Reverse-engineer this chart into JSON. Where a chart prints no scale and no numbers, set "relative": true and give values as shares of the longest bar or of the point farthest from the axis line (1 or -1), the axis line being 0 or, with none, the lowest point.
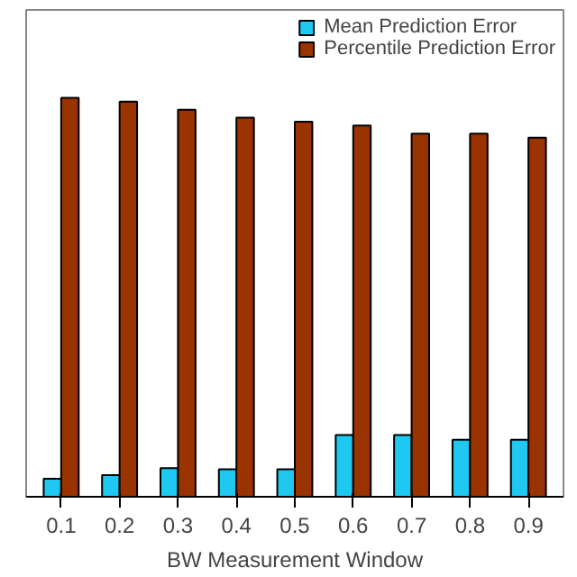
{
  "chart_data": {
    "type": "bar",
    "relative": true,
    "xlabel": "BW Measurement Window",
    "categories": [
      "0.1",
      "0.2",
      "0.3",
      "0.4",
      "0.5",
      "0.6",
      "0.7",
      "0.8",
      "0.9"
    ],
    "series": [
      {
        "name": "Mean Prediction Error",
        "color": "#1ec8f0",
        "values": [
          0.045,
          0.054,
          0.072,
          0.069,
          0.069,
          0.155,
          0.155,
          0.143,
          0.143
        ]
      },
      {
        "name": "Percentile Prediction Error",
        "color": "#993300",
        "values": [
          1,
          0.99,
          0.97,
          0.95,
          0.94,
          0.93,
          0.91,
          0.91,
          0.9
        ]
      }
    ],
    "legend": "top right"
  }
}
